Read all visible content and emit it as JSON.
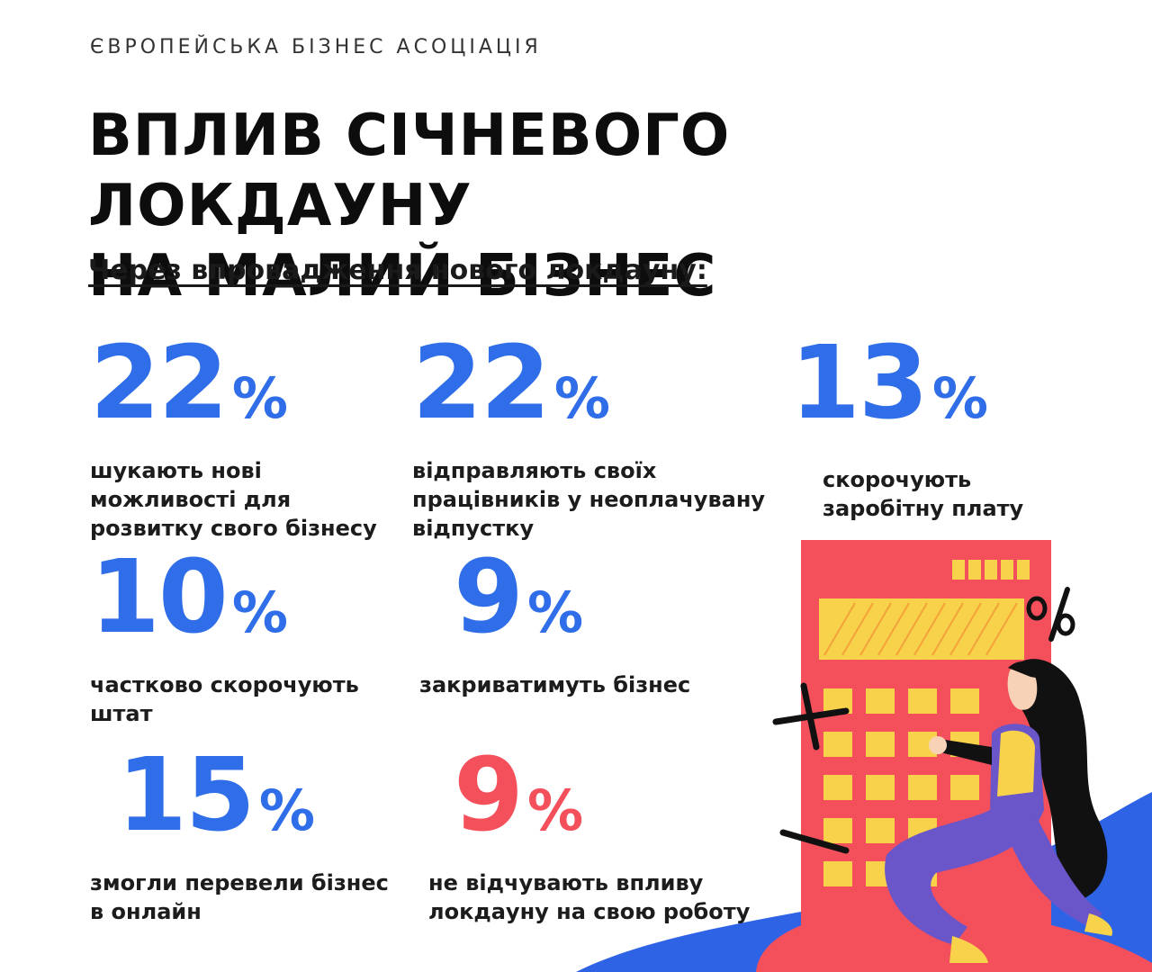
{
  "header": {
    "org": "ЄВРОПЕЙСЬКА БІЗНЕС АСОЦІАЦІЯ",
    "title_line1": "ВПЛИВ СІЧНЕВОГО ЛОКДАУНУ",
    "title_line2": "НА МАЛИЙ БІЗНЕС",
    "subtitle": "Через впровадження нового локдауну:"
  },
  "stats": [
    {
      "value": "22",
      "unit": "%",
      "line1": "шукають нові",
      "line2": "можливості для",
      "line3": "розвитку свого бізнесу",
      "color": "#2f6ee8"
    },
    {
      "value": "22",
      "unit": "%",
      "line1": "відправляють своїх",
      "line2": "працівників у неоплачувану",
      "line3": "відпустку",
      "color": "#2f6ee8"
    },
    {
      "value": "13",
      "unit": "%",
      "line1": "скорочують",
      "line2": "заробітну плату",
      "color": "#2f6ee8"
    },
    {
      "value": "10",
      "unit": "%",
      "line1": "частково скорочують",
      "line2": "штат",
      "color": "#2f6ee8"
    },
    {
      "value": "9",
      "unit": "%",
      "line1": "закриватимуть бізнес",
      "color": "#2f6ee8"
    },
    {
      "value": "15",
      "unit": "%",
      "line1": "змогли перевели бізнес",
      "line2": "в онлайн",
      "color": "#2f6ee8"
    },
    {
      "value": "9",
      "unit": "%",
      "line1": "не відчувають впливу",
      "line2": "локдауну на свою роботу",
      "color": "#f4505b"
    }
  ],
  "colors": {
    "accent_blue": "#2f6ee8",
    "accent_red": "#f4505b",
    "calculator": "#f4505b",
    "keys": "#f7d24a"
  },
  "illustration": {
    "icons": [
      "calculator-icon",
      "plus-sign-icon",
      "minus-sign-icon",
      "percent-sign-icon",
      "woman-figure-icon"
    ]
  }
}
